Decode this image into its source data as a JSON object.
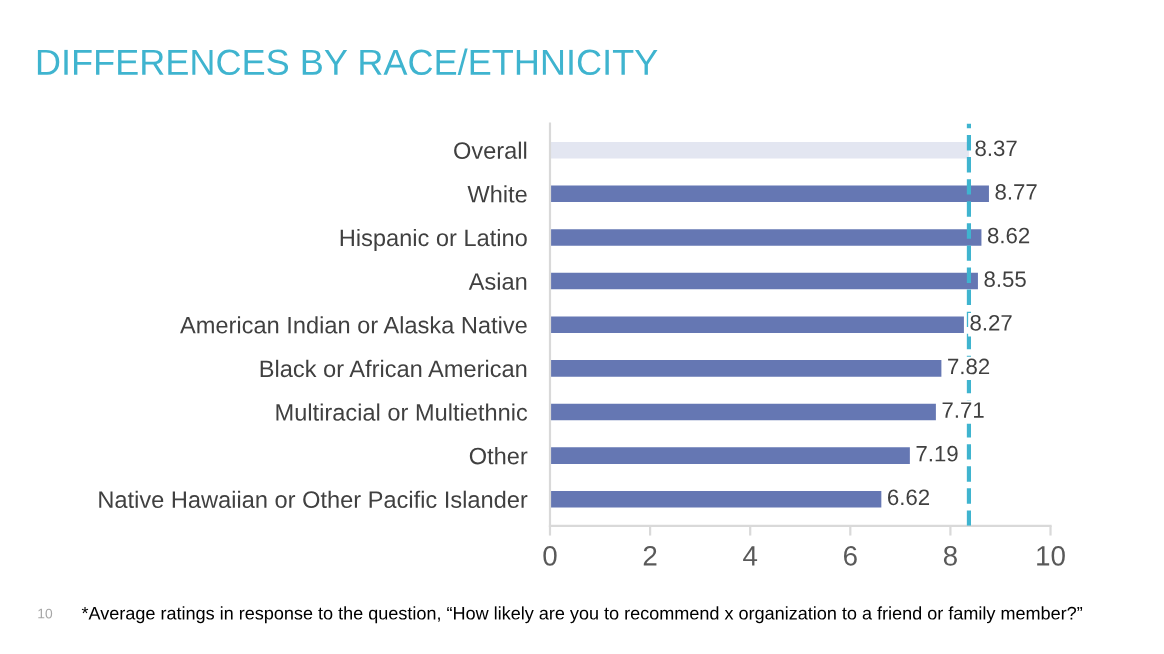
{
  "chart_data": {
    "type": "bar",
    "orientation": "horizontal",
    "title": "DIFFERENCES BY RACE/ETHNICITY",
    "categories": [
      "Overall",
      "White",
      "Hispanic or Latino",
      "Asian",
      "American Indian or Alaska Native",
      "Black or African American",
      "Multiracial or Multiethnic",
      "Other",
      "Native Hawaiian or Other Pacific Islander"
    ],
    "values": [
      8.37,
      8.77,
      8.62,
      8.55,
      8.27,
      7.82,
      7.71,
      7.19,
      6.62
    ],
    "colors": [
      "#e3e6f1",
      "#6577b3",
      "#6577b3",
      "#6577b3",
      "#6577b3",
      "#6577b3",
      "#6577b3",
      "#6577b3",
      "#6577b3"
    ],
    "data_labels": true,
    "xlim": [
      0,
      10
    ],
    "xticks": [
      0,
      2,
      4,
      6,
      8,
      10
    ],
    "grid": false,
    "ref_lines": [
      {
        "axis": "x",
        "value": 8.37,
        "color": "#3fb4cf",
        "line_style": "dashed"
      }
    ],
    "annotations": [
      "10",
      "*Average ratings in response to the question, “How likely are you to recommend x organization to a friend or family member?”"
    ]
  }
}
